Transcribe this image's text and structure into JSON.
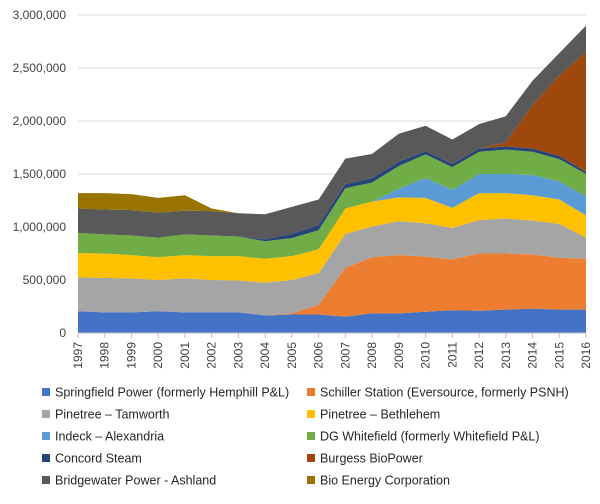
{
  "chart_data": {
    "type": "area",
    "stacked": true,
    "title": "",
    "xlabel": "",
    "ylabel": "",
    "x": [
      1997,
      1998,
      1999,
      2000,
      2001,
      2002,
      2003,
      2004,
      2005,
      2006,
      2007,
      2008,
      2009,
      2010,
      2011,
      2012,
      2013,
      2014,
      2015,
      2016
    ],
    "x_tick_labels": [
      "1997",
      "1998",
      "1999",
      "2000",
      "2001",
      "2002",
      "2003",
      "2004",
      "2005",
      "2006",
      "2007",
      "2008",
      "2009",
      "2010",
      "2011",
      "2012",
      "2013",
      "2014",
      "2015",
      "2016"
    ],
    "ylim": [
      0,
      3000000
    ],
    "y_ticks": [
      0,
      500000,
      1000000,
      1500000,
      2000000,
      2500000,
      3000000
    ],
    "y_tick_labels": [
      "0",
      "500,000",
      "1,000,000",
      "1,500,000",
      "2,000,000",
      "2,500,000",
      "3,000,000"
    ],
    "legend_position": "bottom",
    "series": [
      {
        "name": "Springfield Power (formerly Hemphill P&L)",
        "color": "#4472C4",
        "values": [
          205000,
          195000,
          195000,
          205000,
          195000,
          195000,
          195000,
          165000,
          175000,
          175000,
          155000,
          185000,
          185000,
          200000,
          215000,
          210000,
          220000,
          230000,
          220000,
          220000
        ]
      },
      {
        "name": "Schiller Station (Eversource, formerly PSNH)",
        "color": "#ED7D31",
        "values": [
          0,
          0,
          0,
          0,
          0,
          0,
          0,
          0,
          10000,
          90000,
          460000,
          530000,
          550000,
          520000,
          480000,
          540000,
          530000,
          510000,
          490000,
          480000
        ]
      },
      {
        "name": "Pinetree – Tamworth",
        "color": "#A5A5A5",
        "values": [
          320000,
          325000,
          320000,
          295000,
          320000,
          305000,
          300000,
          310000,
          315000,
          300000,
          320000,
          290000,
          320000,
          315000,
          295000,
          315000,
          330000,
          320000,
          320000,
          200000
        ]
      },
      {
        "name": "Pinetree – Bethlehem",
        "color": "#FFC000",
        "values": [
          230000,
          230000,
          220000,
          215000,
          220000,
          225000,
          230000,
          225000,
          225000,
          225000,
          240000,
          235000,
          225000,
          240000,
          190000,
          255000,
          240000,
          240000,
          230000,
          210000
        ]
      },
      {
        "name": "Indeck – Alexandria",
        "color": "#5B9BD5",
        "values": [
          0,
          0,
          0,
          0,
          0,
          0,
          0,
          0,
          0,
          0,
          0,
          0,
          80000,
          190000,
          170000,
          180000,
          180000,
          190000,
          170000,
          180000
        ]
      },
      {
        "name": "DG Whitefield (formerly Whitefield P&L)",
        "color": "#70AD47",
        "values": [
          190000,
          180000,
          185000,
          185000,
          195000,
          195000,
          185000,
          165000,
          170000,
          180000,
          190000,
          180000,
          215000,
          220000,
          215000,
          210000,
          230000,
          220000,
          210000,
          210000
        ]
      },
      {
        "name": "Concord Steam",
        "color": "#264478",
        "values": [
          0,
          0,
          0,
          0,
          0,
          0,
          0,
          20000,
          40000,
          50000,
          40000,
          40000,
          40000,
          30000,
          30000,
          30000,
          30000,
          30000,
          30000,
          20000
        ]
      },
      {
        "name": "Burgess BioPower",
        "color": "#9E480E",
        "values": [
          0,
          0,
          0,
          0,
          0,
          0,
          0,
          0,
          0,
          0,
          0,
          0,
          0,
          0,
          0,
          0,
          40000,
          410000,
          760000,
          1130000
        ]
      },
      {
        "name": "Bridgewater Power - Ashland",
        "color": "#595959",
        "values": [
          230000,
          235000,
          240000,
          235000,
          225000,
          230000,
          220000,
          235000,
          255000,
          240000,
          240000,
          230000,
          265000,
          240000,
          230000,
          230000,
          245000,
          230000,
          210000,
          250000
        ]
      },
      {
        "name": "Bio Energy Corporation",
        "color": "#997300",
        "values": [
          145000,
          155000,
          150000,
          140000,
          145000,
          25000,
          0,
          0,
          0,
          0,
          0,
          0,
          0,
          0,
          0,
          0,
          0,
          0,
          0,
          0
        ]
      }
    ]
  }
}
